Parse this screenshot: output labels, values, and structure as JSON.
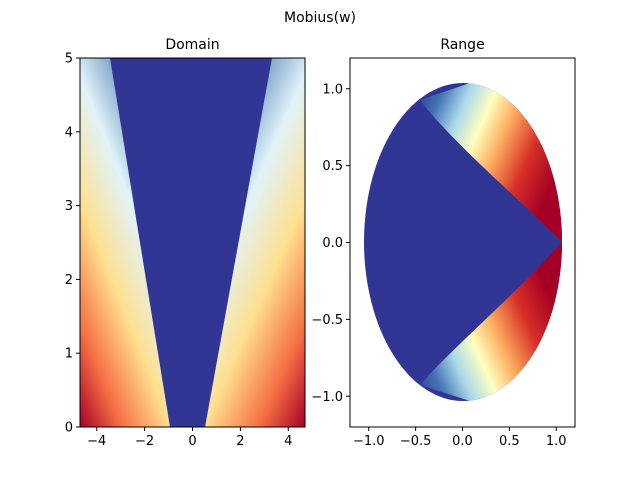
{
  "figure": {
    "suptitle": "Mobius(w)"
  },
  "colors": {
    "colormap": "RdYlBu",
    "cmap_stops": [
      "#a50026",
      "#d73027",
      "#f46d43",
      "#fdae61",
      "#fee090",
      "#ffffbf",
      "#e0f3f8",
      "#abd9e9",
      "#74add1",
      "#4575b4",
      "#313695"
    ],
    "background": "#ffffff",
    "axes_edge": "#000000"
  },
  "chart_data": [
    {
      "type": "heatmap",
      "title": "Domain",
      "xlabel": "",
      "ylabel": "",
      "xlim": [
        -4.7,
        4.7
      ],
      "ylim": [
        0,
        5
      ],
      "xticks": [
        -4,
        -2,
        0,
        2,
        4
      ],
      "xtick_labels": [
        "−4",
        "−2",
        "0",
        "2",
        "4"
      ],
      "yticks": [
        0,
        1,
        2,
        3,
        4,
        5
      ],
      "ytick_labels": [
        "0",
        "1",
        "2",
        "3",
        "4",
        "5"
      ],
      "grid": false,
      "description_of_values": "color = angle of w, red near real axis, blue near imaginary axis, with saturated blue wedge above |x|<1"
    },
    {
      "type": "heatmap",
      "title": "Range",
      "xlabel": "",
      "ylabel": "",
      "xlim": [
        -1.2,
        1.2
      ],
      "ylim": [
        -1.2,
        1.2
      ],
      "xticks": [
        -1.0,
        -0.5,
        0.0,
        0.5,
        1.0
      ],
      "xtick_labels": [
        "−1.0",
        "−0.5",
        "0.0",
        "0.5",
        "1.0"
      ],
      "yticks": [
        -1.0,
        -0.5,
        0.0,
        0.5,
        1.0
      ],
      "ytick_labels": [
        "−1.0",
        "−0.5",
        "0.0",
        "0.5",
        "1.0"
      ],
      "grid": false,
      "disk_radius": 1.0
    }
  ]
}
